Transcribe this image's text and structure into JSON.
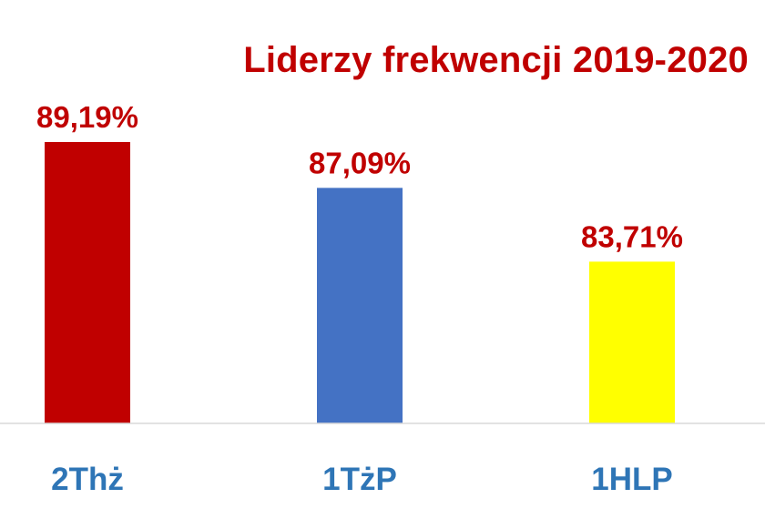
{
  "chart_data": {
    "type": "bar",
    "title": "Liderzy frekwencji 2019-2020",
    "categories": [
      "2Thż",
      "1TżP",
      "1HLP"
    ],
    "values": [
      89.19,
      87.09,
      83.71
    ],
    "value_labels": [
      "89,19%",
      "87,09%",
      "83,71%"
    ],
    "bar_colors": [
      "#c00000",
      "#4472c4",
      "#ffff00"
    ],
    "title_color": "#c00000",
    "data_label_color": "#c00000",
    "category_label_color": "#2e75b6",
    "axis_color": "#d9d9d9",
    "xlabel": "",
    "ylabel": "",
    "ylim": [
      76.3,
      89.19
    ],
    "grid": false,
    "legend": "none"
  }
}
